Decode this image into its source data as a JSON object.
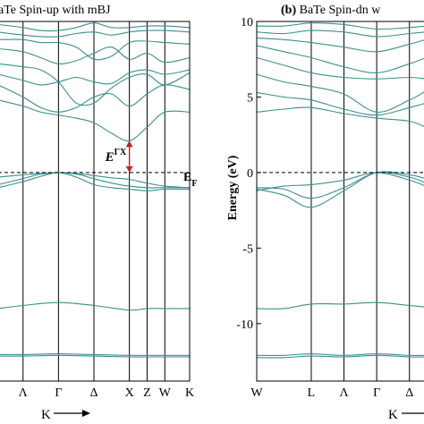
{
  "chart_data": [
    {
      "type": "line",
      "panel": "a",
      "title": "aTe  Spin-up  with  mBJ",
      "xlabel": "K",
      "ylabel": "",
      "ylim": [
        -13.8,
        10
      ],
      "yticks": [],
      "k_points": [
        "Λ",
        "Γ",
        "Δ",
        "X",
        "Z",
        "W",
        "K"
      ],
      "k_positions": [
        0.0,
        1.0,
        2.0,
        3.0,
        3.5,
        4.0,
        4.7
      ],
      "xlim": [
        -0.7,
        4.7
      ],
      "fermi_label": "E",
      "fermi_sub": "F",
      "gap_label": "E",
      "gap_sup": "ΓX",
      "gap": {
        "x": 3.0,
        "y0": 0,
        "y1": 2.1
      },
      "line_color": "#3a8f8c",
      "annotation_color": "#cc1f1f",
      "bands": [
        {
          "x": [
            -0.7,
            0,
            1,
            2,
            3,
            3.5,
            4,
            4.7
          ],
          "y": [
            -12.05,
            -12.05,
            -12.0,
            -12.05,
            -12.1,
            -12.1,
            -12.1,
            -12.1
          ]
        },
        {
          "x": [
            -0.7,
            0,
            1,
            2,
            3,
            3.5,
            4,
            4.7
          ],
          "y": [
            -12.15,
            -12.15,
            -12.1,
            -12.15,
            -12.2,
            -12.2,
            -12.2,
            -12.2
          ]
        },
        {
          "x": [
            -0.7,
            0,
            1,
            2,
            3,
            3.5,
            4,
            4.7
          ],
          "y": [
            -9.0,
            -8.8,
            -8.6,
            -8.8,
            -9.1,
            -9.0,
            -9.0,
            -9.0
          ]
        },
        {
          "x": [
            -0.7,
            0,
            0.5,
            1,
            1.5,
            2,
            2.5,
            3,
            3.5,
            4,
            4.7
          ],
          "y": [
            -1.0,
            -0.6,
            -0.25,
            0,
            -0.3,
            -0.8,
            -1.0,
            -1.1,
            -1.2,
            -1.1,
            -1.1
          ]
        },
        {
          "x": [
            -0.7,
            0,
            0.5,
            1,
            1.5,
            2,
            2.5,
            3,
            3.5,
            4,
            4.7
          ],
          "y": [
            -0.8,
            -0.4,
            -0.1,
            0,
            -0.1,
            -0.4,
            -0.7,
            -0.9,
            -1.0,
            -1.0,
            -1.0
          ]
        },
        {
          "x": [
            -0.7,
            0,
            0.5,
            1,
            1.5,
            2,
            2.5,
            3,
            3.5,
            4,
            4.7
          ],
          "y": [
            -0.3,
            -0.15,
            -0.05,
            0,
            -0.05,
            -0.2,
            -0.35,
            -0.45,
            -0.7,
            -0.9,
            -1.0
          ]
        },
        {
          "x": [
            -0.7,
            0,
            0.5,
            1,
            1.5,
            2,
            2.5,
            3,
            3.5,
            4,
            4.7
          ],
          "y": [
            4.8,
            4.4,
            4.0,
            3.8,
            3.6,
            3.3,
            2.6,
            2.1,
            3.0,
            4.0,
            4.0
          ]
        },
        {
          "x": [
            -0.7,
            0,
            0.5,
            1,
            1.5,
            2,
            2.5,
            3,
            3.5,
            4,
            4.7
          ],
          "y": [
            5.8,
            5.0,
            4.3,
            4.0,
            4.3,
            5.0,
            5.2,
            4.4,
            5.2,
            5.8,
            5.5
          ]
        },
        {
          "x": [
            -0.7,
            0,
            0.5,
            1,
            1.5,
            2,
            2.5,
            3,
            3.5,
            4,
            4.7
          ],
          "y": [
            7.2,
            7.0,
            6.8,
            6.0,
            4.6,
            4.6,
            5.6,
            6.3,
            6.5,
            5.8,
            6.6
          ]
        },
        {
          "x": [
            -0.7,
            0,
            0.5,
            1,
            1.5,
            2,
            2.5,
            3,
            3.5,
            4,
            4.7
          ],
          "y": [
            6.5,
            6.1,
            5.8,
            6.0,
            6.3,
            6.0,
            5.9,
            6.6,
            6.8,
            6.5,
            6.8
          ]
        },
        {
          "x": [
            -0.7,
            0,
            0.5,
            1,
            1.5,
            2,
            2.5,
            3,
            3.5,
            4,
            4.7
          ],
          "y": [
            8.2,
            8.0,
            7.6,
            7.2,
            7.4,
            7.9,
            8.3,
            7.5,
            7.9,
            7.3,
            7.6
          ]
        },
        {
          "x": [
            -0.7,
            0,
            0.5,
            1,
            1.5,
            2,
            2.5,
            3,
            3.5,
            4,
            4.7
          ],
          "y": [
            8.8,
            8.8,
            8.6,
            8.6,
            8.3,
            7.5,
            7.7,
            8.6,
            8.7,
            8.6,
            8.5
          ]
        },
        {
          "x": [
            -0.7,
            0,
            0.5,
            1,
            1.5,
            2,
            2.5,
            3,
            3.5,
            4,
            4.7
          ],
          "y": [
            9.3,
            9.1,
            9.0,
            9.0,
            9.2,
            9.3,
            9.1,
            9.3,
            9.4,
            9.4,
            9.3
          ]
        },
        {
          "x": [
            -0.7,
            0,
            0.5,
            1,
            1.5,
            2,
            2.5,
            3,
            3.5,
            4,
            4.7
          ],
          "y": [
            9.8,
            9.6,
            9.4,
            9.4,
            9.6,
            9.9,
            9.6,
            9.6,
            9.7,
            9.7,
            9.6
          ]
        }
      ]
    },
    {
      "type": "line",
      "panel": "b",
      "title_prefix": "(b)",
      "title": " BaTe  Spin-dn  w",
      "xlabel": "K",
      "ylabel": "Energy (eV)",
      "ylim": [
        -13.8,
        10
      ],
      "yticks": [
        10,
        5,
        0,
        -5,
        -10
      ],
      "k_points": [
        "W",
        "L",
        "Λ",
        "Γ",
        "Δ"
      ],
      "k_positions": [
        0.0,
        1.0,
        1.6,
        2.2,
        2.8
      ],
      "xlim": [
        0.0,
        3.1
      ],
      "line_color": "#3a8f8c",
      "bands": [
        {
          "x": [
            0,
            0.5,
            1,
            1.6,
            2.2,
            2.8,
            3.1
          ],
          "y": [
            -12.1,
            -12.1,
            -12.0,
            -12.1,
            -12.0,
            -12.1,
            -12.1
          ]
        },
        {
          "x": [
            0,
            0.5,
            1,
            1.6,
            2.2,
            2.8,
            3.1
          ],
          "y": [
            -12.25,
            -12.25,
            -12.15,
            -12.2,
            -12.1,
            -12.2,
            -12.2
          ]
        },
        {
          "x": [
            0,
            0.5,
            1,
            1.6,
            2.2,
            2.8,
            3.1
          ],
          "y": [
            -9.0,
            -9.0,
            -8.7,
            -8.7,
            -8.6,
            -8.8,
            -8.9
          ]
        },
        {
          "x": [
            0,
            0.5,
            1,
            1.6,
            2.2,
            2.8,
            3.1
          ],
          "y": [
            -1.2,
            -0.9,
            -0.8,
            -0.5,
            0,
            -0.5,
            -0.9
          ]
        },
        {
          "x": [
            0,
            0.5,
            1,
            1.6,
            2.2,
            2.8,
            3.1
          ],
          "y": [
            -1.0,
            -1.1,
            -1.7,
            -1.0,
            0,
            -0.3,
            -0.7
          ]
        },
        {
          "x": [
            0,
            0.5,
            1,
            1.6,
            2.2,
            2.8,
            3.1
          ],
          "y": [
            -1.1,
            -1.5,
            -2.3,
            -1.2,
            0,
            -0.15,
            -0.4
          ]
        },
        {
          "x": [
            0,
            0.5,
            1,
            1.6,
            2.2,
            2.8,
            3.1
          ],
          "y": [
            4.0,
            4.2,
            4.3,
            3.9,
            3.6,
            3.4,
            3.0
          ]
        },
        {
          "x": [
            0,
            0.5,
            1,
            1.6,
            2.2,
            2.8,
            3.1
          ],
          "y": [
            5.3,
            5.0,
            4.8,
            4.2,
            3.8,
            4.3,
            4.6
          ]
        },
        {
          "x": [
            0,
            0.5,
            1,
            1.6,
            2.2,
            2.8,
            3.1
          ],
          "y": [
            6.5,
            6.0,
            5.7,
            5.2,
            4.0,
            4.8,
            5.4
          ]
        },
        {
          "x": [
            0,
            0.5,
            1,
            1.6,
            2.2,
            2.8,
            3.1
          ],
          "y": [
            7.6,
            7.1,
            6.6,
            6.3,
            6.2,
            6.3,
            6.2
          ]
        },
        {
          "x": [
            0,
            0.5,
            1,
            1.6,
            2.2,
            2.8,
            3.1
          ],
          "y": [
            8.4,
            8.0,
            7.6,
            7.0,
            6.6,
            7.2,
            7.6
          ]
        },
        {
          "x": [
            0,
            0.5,
            1,
            1.6,
            2.2,
            2.8,
            3.1
          ],
          "y": [
            8.9,
            8.8,
            8.6,
            8.3,
            8.0,
            8.5,
            8.8
          ]
        },
        {
          "x": [
            0,
            0.5,
            1,
            1.6,
            2.2,
            2.8,
            3.1
          ],
          "y": [
            9.3,
            9.2,
            9.4,
            9.3,
            9.0,
            9.2,
            9.3
          ]
        },
        {
          "x": [
            0,
            0.5,
            1,
            1.6,
            2.2,
            2.8,
            3.1
          ],
          "y": [
            9.7,
            9.7,
            9.9,
            9.8,
            9.5,
            9.6,
            9.7
          ]
        }
      ]
    }
  ]
}
